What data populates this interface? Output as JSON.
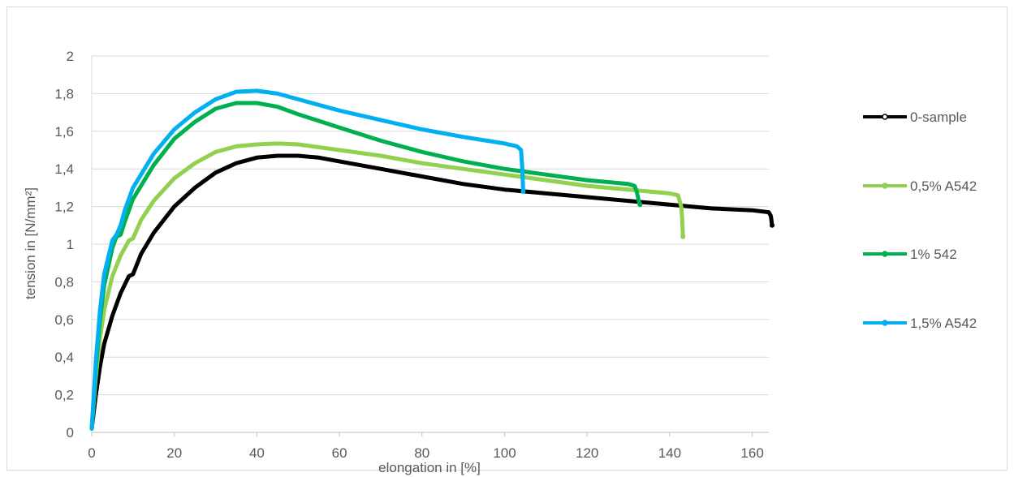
{
  "chart_data": {
    "type": "line",
    "xlabel": "elongation in [%]",
    "ylabel": "tension  in [N/mm²]",
    "xlim": [
      0,
      165
    ],
    "ylim": [
      0,
      2
    ],
    "x_ticks": [
      "0",
      "20",
      "40",
      "60",
      "80",
      "100",
      "120",
      "140",
      "160"
    ],
    "y_ticks": [
      "0",
      "0,2",
      "0,4",
      "0,6",
      "0,8",
      "1",
      "1,2",
      "1,4",
      "1,6",
      "1,8",
      "2"
    ],
    "grid": "horizontal",
    "legend_position": "right",
    "series": [
      {
        "name": "0-sample",
        "color": "#000000",
        "points": [
          [
            0,
            0.02
          ],
          [
            1,
            0.2
          ],
          [
            2,
            0.35
          ],
          [
            3,
            0.47
          ],
          [
            5,
            0.62
          ],
          [
            7,
            0.74
          ],
          [
            9,
            0.83
          ],
          [
            10,
            0.84
          ],
          [
            12,
            0.95
          ],
          [
            15,
            1.06
          ],
          [
            20,
            1.2
          ],
          [
            25,
            1.3
          ],
          [
            30,
            1.38
          ],
          [
            35,
            1.43
          ],
          [
            40,
            1.46
          ],
          [
            45,
            1.47
          ],
          [
            50,
            1.47
          ],
          [
            55,
            1.46
          ],
          [
            60,
            1.44
          ],
          [
            70,
            1.4
          ],
          [
            80,
            1.36
          ],
          [
            90,
            1.32
          ],
          [
            100,
            1.29
          ],
          [
            110,
            1.27
          ],
          [
            120,
            1.25
          ],
          [
            130,
            1.23
          ],
          [
            140,
            1.21
          ],
          [
            150,
            1.19
          ],
          [
            160,
            1.18
          ],
          [
            164,
            1.17
          ],
          [
            164.5,
            1.15
          ],
          [
            164.8,
            1.1
          ]
        ]
      },
      {
        "name": "0,5% A542",
        "color": "#92d050",
        "points": [
          [
            0,
            0.02
          ],
          [
            1,
            0.3
          ],
          [
            2,
            0.5
          ],
          [
            3,
            0.65
          ],
          [
            5,
            0.83
          ],
          [
            7,
            0.94
          ],
          [
            9,
            1.02
          ],
          [
            10,
            1.03
          ],
          [
            12,
            1.13
          ],
          [
            15,
            1.23
          ],
          [
            20,
            1.35
          ],
          [
            25,
            1.43
          ],
          [
            30,
            1.49
          ],
          [
            35,
            1.52
          ],
          [
            40,
            1.53
          ],
          [
            45,
            1.535
          ],
          [
            50,
            1.53
          ],
          [
            60,
            1.5
          ],
          [
            70,
            1.47
          ],
          [
            80,
            1.43
          ],
          [
            90,
            1.4
          ],
          [
            100,
            1.37
          ],
          [
            110,
            1.34
          ],
          [
            120,
            1.31
          ],
          [
            130,
            1.29
          ],
          [
            140,
            1.27
          ],
          [
            142,
            1.26
          ],
          [
            142.8,
            1.2
          ],
          [
            143,
            1.14
          ],
          [
            143.2,
            1.04
          ]
        ]
      },
      {
        "name": "1% 542",
        "color": "#00b050",
        "points": [
          [
            0,
            0.02
          ],
          [
            1,
            0.35
          ],
          [
            2,
            0.6
          ],
          [
            3,
            0.78
          ],
          [
            5,
            0.98
          ],
          [
            6,
            1.04
          ],
          [
            7,
            1.05
          ],
          [
            8,
            1.12
          ],
          [
            10,
            1.24
          ],
          [
            15,
            1.42
          ],
          [
            20,
            1.56
          ],
          [
            25,
            1.65
          ],
          [
            30,
            1.72
          ],
          [
            35,
            1.75
          ],
          [
            40,
            1.75
          ],
          [
            45,
            1.73
          ],
          [
            50,
            1.69
          ],
          [
            60,
            1.62
          ],
          [
            70,
            1.55
          ],
          [
            80,
            1.49
          ],
          [
            90,
            1.44
          ],
          [
            100,
            1.4
          ],
          [
            110,
            1.37
          ],
          [
            120,
            1.34
          ],
          [
            130,
            1.32
          ],
          [
            131.5,
            1.31
          ],
          [
            132,
            1.28
          ],
          [
            132.5,
            1.23
          ],
          [
            132.8,
            1.21
          ]
        ]
      },
      {
        "name": "1,5% A542",
        "color": "#00b0f0",
        "points": [
          [
            0,
            0.02
          ],
          [
            1,
            0.38
          ],
          [
            2,
            0.65
          ],
          [
            3,
            0.84
          ],
          [
            5,
            1.02
          ],
          [
            6,
            1.05
          ],
          [
            7,
            1.1
          ],
          [
            8,
            1.18
          ],
          [
            10,
            1.3
          ],
          [
            15,
            1.48
          ],
          [
            20,
            1.61
          ],
          [
            25,
            1.7
          ],
          [
            30,
            1.77
          ],
          [
            35,
            1.81
          ],
          [
            40,
            1.815
          ],
          [
            45,
            1.8
          ],
          [
            50,
            1.77
          ],
          [
            60,
            1.71
          ],
          [
            70,
            1.66
          ],
          [
            80,
            1.61
          ],
          [
            90,
            1.57
          ],
          [
            100,
            1.535
          ],
          [
            103,
            1.52
          ],
          [
            104,
            1.5
          ],
          [
            104.3,
            1.4
          ],
          [
            104.5,
            1.28
          ]
        ]
      }
    ]
  }
}
